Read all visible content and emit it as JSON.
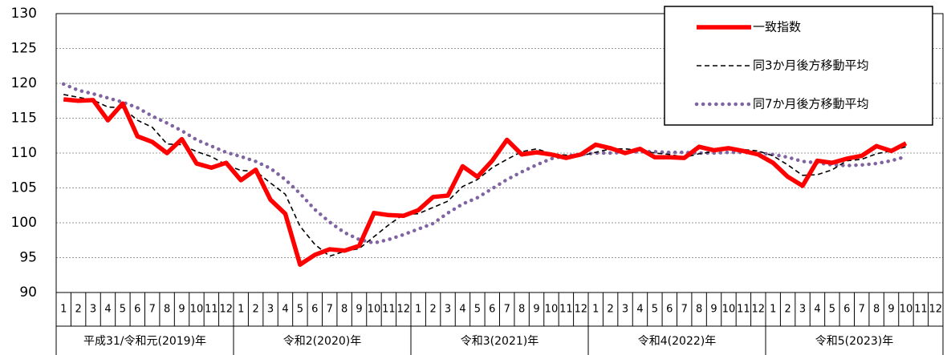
{
  "chart_data": {
    "type": "line",
    "categories": [
      "1",
      "2",
      "3",
      "4",
      "5",
      "6",
      "7",
      "8",
      "9",
      "10",
      "11",
      "12",
      "1",
      "2",
      "3",
      "4",
      "5",
      "6",
      "7",
      "8",
      "9",
      "10",
      "11",
      "12",
      "1",
      "2",
      "3",
      "4",
      "5",
      "6",
      "7",
      "8",
      "9",
      "10",
      "11",
      "12",
      "1",
      "2",
      "3",
      "4",
      "5",
      "6",
      "7",
      "8",
      "9",
      "10",
      "11",
      "12",
      "1",
      "2",
      "3",
      "4",
      "5",
      "6",
      "7",
      "8",
      "9",
      "10",
      "11",
      "12"
    ],
    "year_labels": [
      "平成31/令和元(2019)年",
      "令和2(2020)年",
      "令和3(2021)年",
      "令和4(2022)年",
      "令和5(2023)年"
    ],
    "series": [
      {
        "name": "一致指数",
        "color": "#ff0000",
        "style": "solid",
        "values": [
          117.7,
          117.5,
          117.6,
          114.7,
          117.1,
          112.4,
          111.6,
          110.0,
          112.0,
          108.5,
          107.9,
          108.6,
          106.1,
          107.6,
          103.3,
          101.3,
          94.0,
          95.4,
          96.2,
          96.0,
          96.7,
          101.4,
          101.1,
          101.0,
          101.8,
          103.7,
          103.9,
          108.1,
          106.6,
          108.9,
          111.9,
          109.8,
          110.1,
          109.8,
          109.3,
          109.8,
          111.2,
          110.7,
          110.0,
          110.6,
          109.4,
          109.4,
          109.3,
          110.9,
          110.4,
          110.7,
          110.3,
          109.8,
          108.6,
          106.6,
          105.3,
          108.9,
          108.6,
          109.2,
          109.6,
          111.0,
          110.3,
          111.4,
          null,
          null
        ]
      },
      {
        "name": "同3か月後方移動平均",
        "color": "#000000",
        "style": "dashed",
        "values": [
          118.4,
          118.0,
          117.6,
          116.6,
          116.5,
          114.7,
          113.7,
          111.3,
          111.2,
          110.2,
          109.5,
          108.3,
          107.5,
          107.4,
          105.7,
          104.1,
          99.5,
          96.9,
          95.2,
          95.9,
          96.3,
          98.0,
          99.7,
          101.2,
          101.3,
          102.2,
          103.1,
          105.2,
          106.2,
          107.9,
          109.1,
          110.2,
          110.6,
          109.9,
          109.7,
          109.6,
          110.1,
          110.6,
          110.6,
          110.4,
          110.0,
          109.8,
          109.4,
          109.9,
          110.2,
          110.7,
          110.5,
          110.3,
          109.6,
          108.3,
          106.8,
          106.9,
          107.6,
          108.9,
          109.1,
          109.9,
          110.3,
          110.9,
          null,
          null
        ]
      },
      {
        "name": "同7か月後方移動平均",
        "color": "#8064a2",
        "style": "dotted",
        "values": [
          119.9,
          119.0,
          118.5,
          117.9,
          117.3,
          116.5,
          115.3,
          114.3,
          113.2,
          111.9,
          111.0,
          110.1,
          109.5,
          108.8,
          107.8,
          106.2,
          104.2,
          101.9,
          100.1,
          98.6,
          97.6,
          97.1,
          97.6,
          98.3,
          99.1,
          99.9,
          101.4,
          102.7,
          103.6,
          104.9,
          106.2,
          107.3,
          108.3,
          109.2,
          109.6,
          109.8,
          110.0,
          110.0,
          110.1,
          110.2,
          110.2,
          110.1,
          110.1,
          110.0,
          110.0,
          110.1,
          110.1,
          110.0,
          109.8,
          109.4,
          108.8,
          108.6,
          108.3,
          108.2,
          108.3,
          108.5,
          108.9,
          109.5,
          null,
          null
        ]
      }
    ],
    "ylim": [
      90,
      130
    ],
    "yticks": [
      90,
      95,
      100,
      105,
      110,
      115,
      120,
      125,
      130
    ],
    "grid": true,
    "legend": "upper right"
  }
}
